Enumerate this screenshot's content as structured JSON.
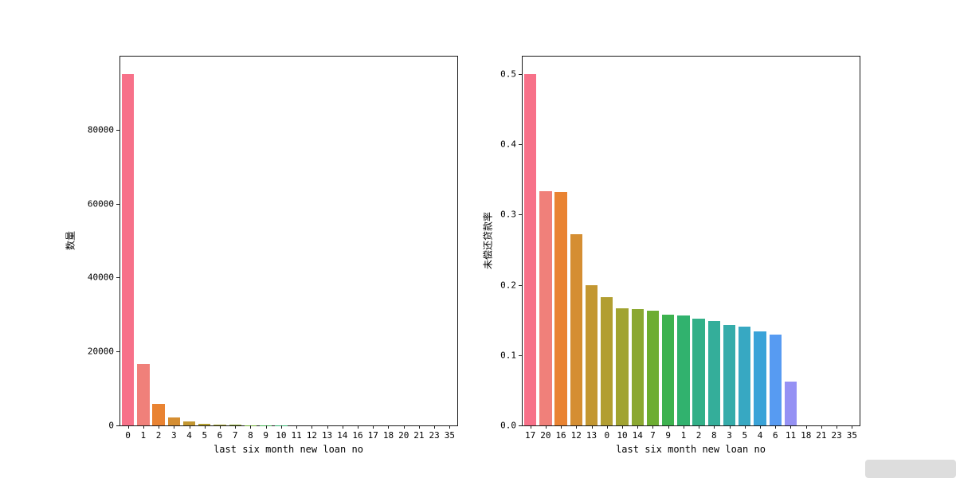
{
  "figure": {
    "background": "#ffffff"
  },
  "palette": [
    "#f77189",
    "#f0807a",
    "#e98332",
    "#d58e32",
    "#c39732",
    "#b29e31",
    "#a1a331",
    "#8ba831",
    "#6dad31",
    "#3db24f",
    "#31b26e",
    "#33b088",
    "#34ae9a",
    "#35acaa",
    "#37a8c2",
    "#39a3d8",
    "#579bf2",
    "#9591f4",
    "#bb86f4",
    "#d67bf1",
    "#f165d7",
    "#f668a8"
  ],
  "chart_data": [
    {
      "type": "bar",
      "title": "",
      "xlabel": "last six month new loan no",
      "ylabel": "数量",
      "categories": [
        "0",
        "1",
        "2",
        "3",
        "4",
        "5",
        "6",
        "7",
        "8",
        "9",
        "10",
        "11",
        "12",
        "13",
        "14",
        "16",
        "17",
        "18",
        "20",
        "21",
        "23",
        "35"
      ],
      "values": [
        95000,
        16700,
        5800,
        2150,
        1070,
        430,
        240,
        140,
        70,
        35,
        20,
        12,
        8,
        6,
        4,
        3,
        3,
        2,
        2,
        1,
        1,
        1
      ],
      "yticks": [
        0,
        20000,
        40000,
        60000,
        80000
      ],
      "ytick_labels": [
        "0",
        "20000",
        "40000",
        "60000",
        "80000"
      ],
      "ylim": [
        0,
        99750
      ],
      "grid": false,
      "legend": "none"
    },
    {
      "type": "bar",
      "title": "",
      "xlabel": "last six month new loan no",
      "ylabel": "未偿还贷款率",
      "categories": [
        "17",
        "20",
        "16",
        "12",
        "13",
        "0",
        "10",
        "14",
        "7",
        "9",
        "1",
        "2",
        "8",
        "3",
        "5",
        "4",
        "6",
        "11",
        "18",
        "21",
        "23",
        "35"
      ],
      "values": [
        0.5,
        0.333,
        0.332,
        0.272,
        0.2,
        0.183,
        0.167,
        0.166,
        0.163,
        0.158,
        0.156,
        0.152,
        0.149,
        0.143,
        0.141,
        0.134,
        0.129,
        0.062,
        0,
        0,
        0,
        0
      ],
      "yticks": [
        0,
        0.1,
        0.2,
        0.3,
        0.4,
        0.5
      ],
      "ytick_labels": [
        "0.0",
        "0.1",
        "0.2",
        "0.3",
        "0.4",
        "0.5"
      ],
      "ylim": [
        0,
        0.525
      ],
      "grid": false,
      "legend": "none"
    }
  ]
}
